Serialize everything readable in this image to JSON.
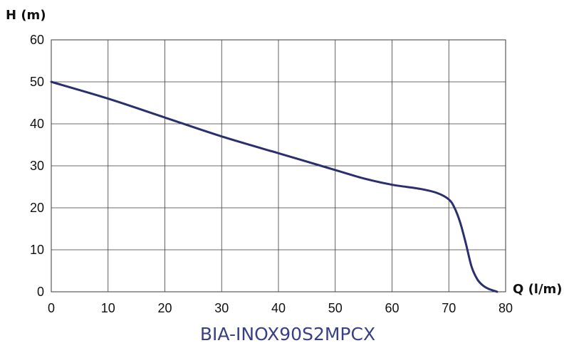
{
  "chart_data": {
    "type": "line",
    "title": "BIA-INOX90S2MPCX",
    "xlabel": "Q (l/m)",
    "ylabel": "H (m)",
    "xlim": [
      0,
      80
    ],
    "ylim": [
      0,
      60
    ],
    "x_ticks": [
      "0",
      "10",
      "20",
      "30",
      "40",
      "50",
      "60",
      "70",
      "80"
    ],
    "y_ticks": [
      "0",
      "10",
      "20",
      "30",
      "40",
      "50",
      "60"
    ],
    "grid": true,
    "line_color": "#2b2f6e",
    "title_color": "#3a3f86",
    "series": [
      {
        "x": [
          0,
          10,
          20,
          30,
          40,
          45,
          50,
          55,
          60,
          65,
          68,
          70,
          71,
          72,
          73,
          74,
          75,
          76,
          77,
          78.5
        ],
        "y": [
          50,
          46,
          41.5,
          37,
          33,
          31,
          29,
          27,
          25.5,
          24.5,
          23.5,
          22,
          20,
          16.5,
          11.5,
          6,
          3,
          1.5,
          0.7,
          0
        ]
      }
    ]
  }
}
